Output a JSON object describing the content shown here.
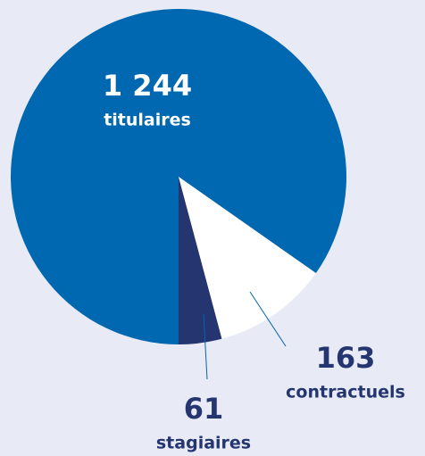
{
  "chart_data": {
    "type": "pie",
    "categories": [
      "stagiaires",
      "contractuels",
      "titulaires"
    ],
    "values": [
      61,
      163,
      1244
    ],
    "value_labels": [
      "61",
      "163",
      "1 244"
    ],
    "colors": [
      "#253570",
      "#ffffff",
      "#0067b1"
    ]
  }
}
